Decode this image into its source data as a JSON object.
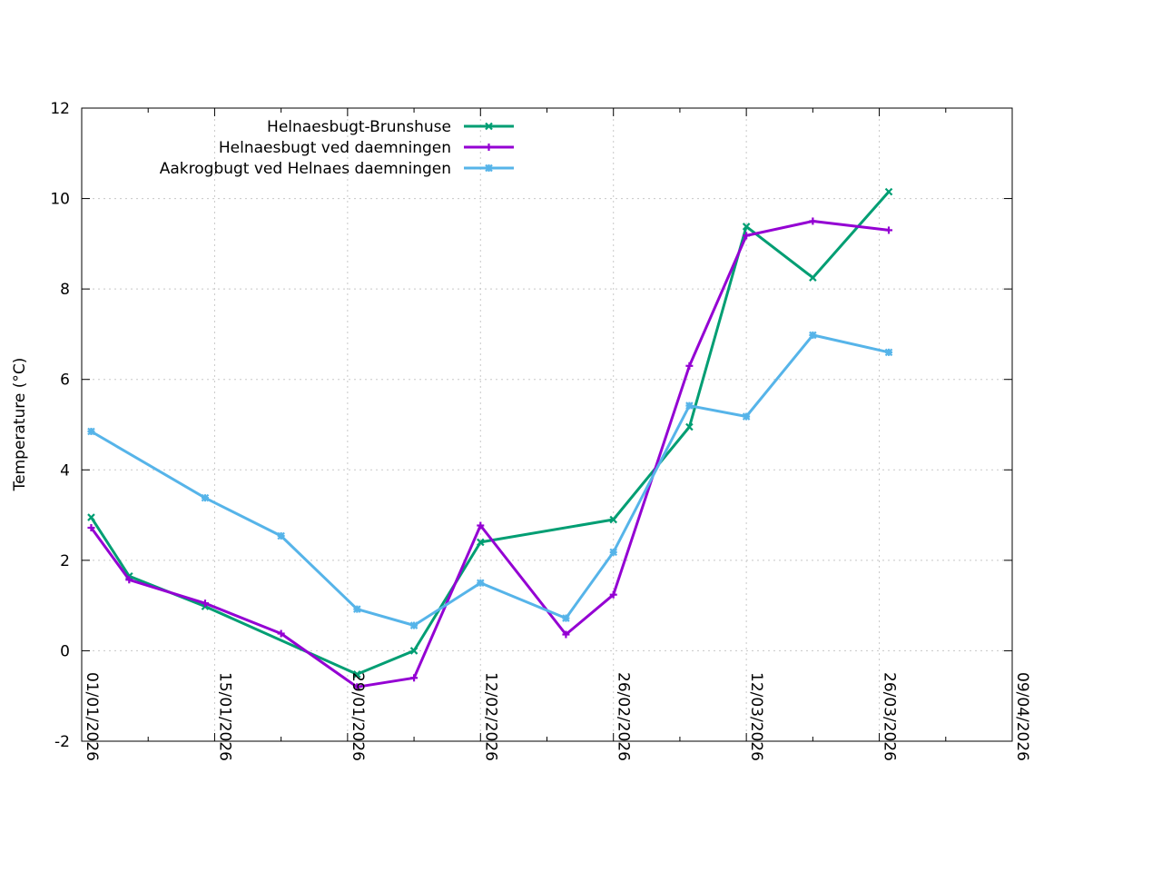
{
  "chart_data": {
    "type": "line",
    "title": "",
    "xlabel": "",
    "ylabel": "Temperature (°C)",
    "ylim": [
      -2,
      12
    ],
    "yticks": [
      -2,
      0,
      2,
      4,
      6,
      8,
      10,
      12
    ],
    "xlim": [
      "2026-01-01",
      "2026-04-09"
    ],
    "xticks": [
      "01/01/2026",
      "15/01/2026",
      "29/01/2026",
      "12/02/2026",
      "26/02/2026",
      "12/03/2026",
      "26/03/2026",
      "09/04/2026"
    ],
    "grid": true,
    "legend_position": "top-left",
    "series": [
      {
        "name": "Helnaesbugt-Brunshuse",
        "color": "#009e73",
        "marker": "x",
        "points": [
          {
            "x": "2026-01-02",
            "y": 2.95
          },
          {
            "x": "2026-01-06",
            "y": 1.65
          },
          {
            "x": "2026-01-14",
            "y": 0.98
          },
          {
            "x": "2026-01-30",
            "y": -0.52
          },
          {
            "x": "2026-02-05",
            "y": 0.0
          },
          {
            "x": "2026-02-12",
            "y": 2.4
          },
          {
            "x": "2026-02-26",
            "y": 2.9
          },
          {
            "x": "2026-03-06",
            "y": 4.95
          },
          {
            "x": "2026-03-12",
            "y": 9.38
          },
          {
            "x": "2026-03-19",
            "y": 8.25
          },
          {
            "x": "2026-03-27",
            "y": 10.15
          }
        ]
      },
      {
        "name": "Helnaesbugt ved daemningen",
        "color": "#9400d3",
        "marker": "+",
        "points": [
          {
            "x": "2026-01-02",
            "y": 2.72
          },
          {
            "x": "2026-01-06",
            "y": 1.57
          },
          {
            "x": "2026-01-14",
            "y": 1.05
          },
          {
            "x": "2026-01-22",
            "y": 0.38
          },
          {
            "x": "2026-01-30",
            "y": -0.8
          },
          {
            "x": "2026-02-05",
            "y": -0.6
          },
          {
            "x": "2026-02-12",
            "y": 2.77
          },
          {
            "x": "2026-02-21",
            "y": 0.36
          },
          {
            "x": "2026-02-26",
            "y": 1.24
          },
          {
            "x": "2026-03-06",
            "y": 6.3
          },
          {
            "x": "2026-03-12",
            "y": 9.18
          },
          {
            "x": "2026-03-19",
            "y": 9.5
          },
          {
            "x": "2026-03-27",
            "y": 9.3
          }
        ]
      },
      {
        "name": "Aakrogbugt ved Helnaes daemningen",
        "color": "#56b4e9",
        "marker": "*",
        "points": [
          {
            "x": "2026-01-02",
            "y": 4.85
          },
          {
            "x": "2026-01-14",
            "y": 3.38
          },
          {
            "x": "2026-01-22",
            "y": 2.54
          },
          {
            "x": "2026-01-30",
            "y": 0.92
          },
          {
            "x": "2026-02-05",
            "y": 0.56
          },
          {
            "x": "2026-02-12",
            "y": 1.5
          },
          {
            "x": "2026-02-21",
            "y": 0.72
          },
          {
            "x": "2026-02-26",
            "y": 2.18
          },
          {
            "x": "2026-03-06",
            "y": 5.42
          },
          {
            "x": "2026-03-12",
            "y": 5.18
          },
          {
            "x": "2026-03-19",
            "y": 6.98
          },
          {
            "x": "2026-03-27",
            "y": 6.6
          }
        ]
      }
    ]
  }
}
